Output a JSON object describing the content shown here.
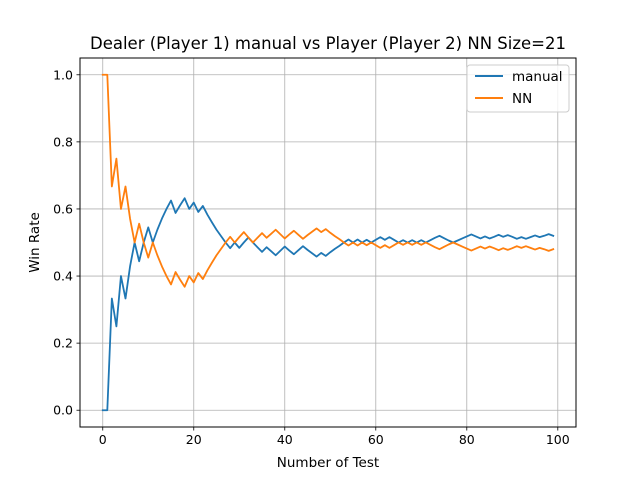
{
  "chart_data": {
    "type": "line",
    "title": "Dealer (Player 1) manual vs Player (Player 2) NN Size=21",
    "xlabel": "Number of Test",
    "ylabel": "Win Rate",
    "xlim": [
      -5,
      104
    ],
    "ylim": [
      -0.05,
      1.05
    ],
    "xticks": [
      "0",
      "20",
      "40",
      "60",
      "80",
      "100"
    ],
    "yticks": [
      "0.0",
      "0.2",
      "0.4",
      "0.6",
      "0.8",
      "1.0"
    ],
    "grid": true,
    "legend_position": "upper-right",
    "x": [
      0,
      1,
      2,
      3,
      4,
      5,
      6,
      7,
      8,
      9,
      10,
      11,
      12,
      13,
      14,
      15,
      16,
      17,
      18,
      19,
      20,
      21,
      22,
      23,
      24,
      25,
      26,
      27,
      28,
      29,
      30,
      31,
      32,
      33,
      34,
      35,
      36,
      37,
      38,
      39,
      40,
      41,
      42,
      43,
      44,
      45,
      46,
      47,
      48,
      49,
      50,
      51,
      52,
      53,
      54,
      55,
      56,
      57,
      58,
      59,
      60,
      61,
      62,
      63,
      64,
      65,
      66,
      67,
      68,
      69,
      70,
      71,
      72,
      73,
      74,
      75,
      76,
      77,
      78,
      79,
      80,
      81,
      82,
      83,
      84,
      85,
      86,
      87,
      88,
      89,
      90,
      91,
      92,
      93,
      94,
      95,
      96,
      97,
      98,
      99
    ],
    "series": [
      {
        "name": "manual",
        "color": "#1f77b4",
        "values": [
          0.0,
          0.0,
          0.333,
          0.25,
          0.4,
          0.333,
          0.429,
          0.5,
          0.444,
          0.5,
          0.545,
          0.5,
          0.538,
          0.571,
          0.6,
          0.625,
          0.588,
          0.611,
          0.632,
          0.6,
          0.619,
          0.591,
          0.609,
          0.583,
          0.56,
          0.538,
          0.519,
          0.5,
          0.483,
          0.5,
          0.484,
          0.5,
          0.515,
          0.5,
          0.486,
          0.472,
          0.486,
          0.474,
          0.462,
          0.475,
          0.488,
          0.476,
          0.465,
          0.477,
          0.489,
          0.478,
          0.468,
          0.458,
          0.469,
          0.46,
          0.471,
          0.481,
          0.49,
          0.5,
          0.509,
          0.5,
          0.509,
          0.5,
          0.508,
          0.5,
          0.508,
          0.516,
          0.508,
          0.516,
          0.508,
          0.5,
          0.507,
          0.5,
          0.507,
          0.5,
          0.507,
          0.5,
          0.507,
          0.514,
          0.52,
          0.513,
          0.506,
          0.5,
          0.506,
          0.512,
          0.518,
          0.524,
          0.518,
          0.512,
          0.518,
          0.512,
          0.517,
          0.523,
          0.517,
          0.522,
          0.517,
          0.511,
          0.516,
          0.511,
          0.516,
          0.521,
          0.516,
          0.52,
          0.525,
          0.52
        ]
      },
      {
        "name": "NN",
        "color": "#ff7f0e",
        "values": [
          1.0,
          1.0,
          0.667,
          0.75,
          0.6,
          0.667,
          0.571,
          0.5,
          0.556,
          0.5,
          0.455,
          0.5,
          0.462,
          0.429,
          0.4,
          0.375,
          0.412,
          0.389,
          0.368,
          0.4,
          0.381,
          0.409,
          0.391,
          0.417,
          0.44,
          0.462,
          0.481,
          0.5,
          0.517,
          0.5,
          0.516,
          0.531,
          0.515,
          0.5,
          0.514,
          0.528,
          0.514,
          0.526,
          0.538,
          0.525,
          0.512,
          0.524,
          0.535,
          0.523,
          0.511,
          0.522,
          0.532,
          0.542,
          0.531,
          0.54,
          0.529,
          0.519,
          0.51,
          0.5,
          0.491,
          0.5,
          0.491,
          0.5,
          0.492,
          0.5,
          0.492,
          0.484,
          0.492,
          0.484,
          0.492,
          0.5,
          0.493,
          0.5,
          0.493,
          0.5,
          0.493,
          0.5,
          0.493,
          0.486,
          0.48,
          0.487,
          0.494,
          0.5,
          0.494,
          0.488,
          0.482,
          0.476,
          0.482,
          0.488,
          0.482,
          0.488,
          0.483,
          0.477,
          0.483,
          0.478,
          0.483,
          0.489,
          0.484,
          0.489,
          0.484,
          0.479,
          0.484,
          0.48,
          0.475,
          0.48
        ]
      }
    ]
  }
}
